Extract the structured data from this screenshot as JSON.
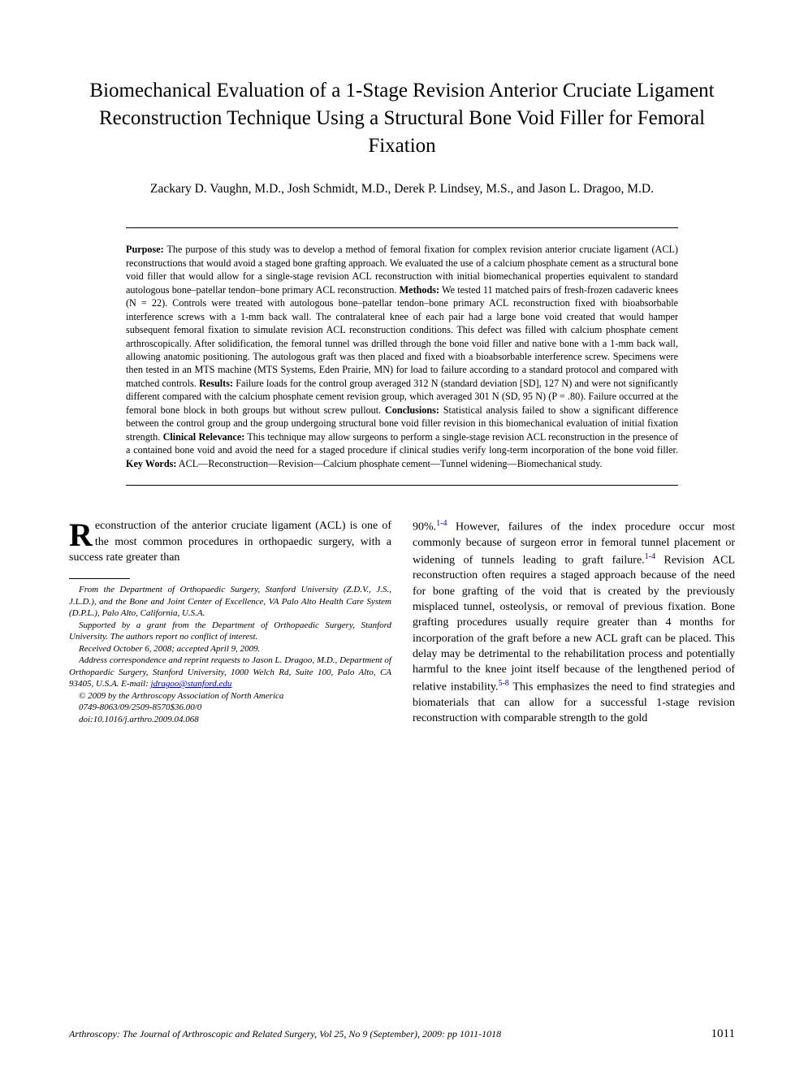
{
  "title": "Biomechanical Evaluation of a 1-Stage Revision Anterior Cruciate Ligament Reconstruction Technique Using a Structural Bone Void Filler for Femoral Fixation",
  "authors": "Zackary D. Vaughn, M.D., Josh Schmidt, M.D., Derek P. Lindsey, M.S., and Jason L. Dragoo, M.D.",
  "abstract": {
    "purpose_label": "Purpose:",
    "purpose_text": " The purpose of this study was to develop a method of femoral fixation for complex revision anterior cruciate ligament (ACL) reconstructions that would avoid a staged bone grafting approach. We evaluated the use of a calcium phosphate cement as a structural bone void filler that would allow for a single-stage revision ACL reconstruction with initial biomechanical properties equivalent to standard autologous bone–patellar tendon–bone primary ACL reconstruction. ",
    "methods_label": "Methods:",
    "methods_text": " We tested 11 matched pairs of fresh-frozen cadaveric knees (N = 22). Controls were treated with autologous bone–patellar tendon–bone primary ACL reconstruction fixed with bioabsorbable interference screws with a 1-mm back wall. The contralateral knee of each pair had a large bone void created that would hamper subsequent femoral fixation to simulate revision ACL reconstruction conditions. This defect was filled with calcium phosphate cement arthroscopically. After solidification, the femoral tunnel was drilled through the bone void filler and native bone with a 1-mm back wall, allowing anatomic positioning. The autologous graft was then placed and fixed with a bioabsorbable interference screw. Specimens were then tested in an MTS machine (MTS Systems, Eden Prairie, MN) for load to failure according to a standard protocol and compared with matched controls. ",
    "results_label": "Results:",
    "results_text": " Failure loads for the control group averaged 312 N (standard deviation [SD], 127 N) and were not significantly different compared with the calcium phosphate cement revision group, which averaged 301 N (SD, 95 N) (P = .80). Failure occurred at the femoral bone block in both groups but without screw pullout. ",
    "conclusions_label": "Conclusions:",
    "conclusions_text": " Statistical analysis failed to show a significant difference between the control group and the group undergoing structural bone void filler revision in this biomechanical evaluation of initial fixation strength. ",
    "clinical_label": "Clinical Relevance:",
    "clinical_text": " This technique may allow surgeons to perform a single-stage revision ACL reconstruction in the presence of a contained bone void and avoid the need for a staged procedure if clinical studies verify long-term incorporation of the bone void filler. ",
    "keywords_label": "Key Words:",
    "keywords_text": " ACL—Reconstruction—Revision—Calcium phosphate cement—Tunnel widening—Biomechanical study."
  },
  "body": {
    "dropcap": "R",
    "col1_p1": "econstruction of the anterior cruciate ligament (ACL) is one of the most common procedures in orthopaedic surgery, with a success rate greater than",
    "col2_p1_a": "90%.",
    "col2_p1_ref1": "1-4",
    "col2_p1_b": " However, failures of the index procedure occur most commonly because of surgeon error in femoral tunnel placement or widening of tunnels leading to graft failure.",
    "col2_p1_ref2": "1-4",
    "col2_p1_c": " Revision ACL reconstruction often requires a staged approach because of the need for bone grafting of the void that is created by the previously misplaced tunnel, osteolysis, or removal of previous fixation. Bone grafting procedures usually require greater than 4 months for incorporation of the graft before a new ACL graft can be placed. This delay may be detrimental to the rehabilitation process and potentially harmful to the knee joint itself because of the lengthened period of relative instability.",
    "col2_p1_ref3": "5-8",
    "col2_p1_d": " This emphasizes the need to find strategies and biomaterials that can allow for a successful 1-stage revision reconstruction with comparable strength to the gold"
  },
  "footnotes": {
    "f1": "From the Department of Orthopaedic Surgery, Stanford University (Z.D.V., J.S., J.L.D.), and the Bone and Joint Center of Excellence, VA Palo Alto Health Care System (D.P.L.), Palo Alto, California, U.S.A.",
    "f2": "Supported by a grant from the Department of Orthopaedic Surgery, Stanford University. The authors report no conflict of interest.",
    "f3": "Received October 6, 2008; accepted April 9, 2009.",
    "f4_a": "Address correspondence and reprint requests to Jason L. Dragoo, M.D., Department of Orthopaedic Surgery, Stanford University, 1000 Welch Rd, Suite 100, Palo Alto, CA 93405, U.S.A. E-mail: ",
    "f4_email": "jdragoo@stanford.edu",
    "f5": "© 2009 by the Arthroscopy Association of North America",
    "f6": "0749-8063/09/2509-8570$36.00/0",
    "f7": "doi:10.1016/j.arthro.2009.04.068"
  },
  "footer": {
    "citation": "Arthroscopy: The Journal of Arthroscopic and Related Surgery, Vol 25, No 9 (September), 2009: pp 1011-1018",
    "page": "1011"
  }
}
